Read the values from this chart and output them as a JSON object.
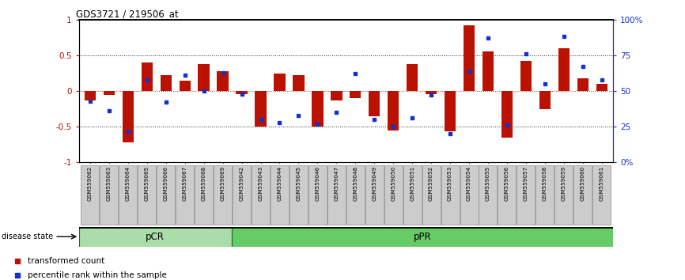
{
  "title": "GDS3721 / 219506_at",
  "samples": [
    "GSM559062",
    "GSM559063",
    "GSM559064",
    "GSM559065",
    "GSM559066",
    "GSM559067",
    "GSM559068",
    "GSM559069",
    "GSM559042",
    "GSM559043",
    "GSM559044",
    "GSM559045",
    "GSM559046",
    "GSM559047",
    "GSM559048",
    "GSM559049",
    "GSM559050",
    "GSM559051",
    "GSM559052",
    "GSM559053",
    "GSM559054",
    "GSM559055",
    "GSM559056",
    "GSM559057",
    "GSM559058",
    "GSM559059",
    "GSM559060",
    "GSM559061"
  ],
  "bar_values": [
    -0.13,
    -0.05,
    -0.72,
    0.4,
    0.22,
    0.15,
    0.38,
    0.28,
    -0.04,
    -0.5,
    0.24,
    0.22,
    -0.5,
    -0.13,
    -0.1,
    -0.35,
    -0.55,
    0.38,
    -0.04,
    -0.56,
    0.92,
    0.55,
    -0.65,
    0.42,
    -0.25,
    0.6,
    0.18,
    0.1
  ],
  "percentile_values": [
    0.43,
    0.36,
    0.22,
    0.58,
    0.42,
    0.61,
    0.5,
    0.63,
    0.48,
    0.3,
    0.28,
    0.33,
    0.27,
    0.35,
    0.62,
    0.3,
    0.25,
    0.31,
    0.47,
    0.2,
    0.64,
    0.87,
    0.26,
    0.76,
    0.55,
    0.88,
    0.67,
    0.58
  ],
  "pCR_count": 8,
  "bar_color": "#bb1100",
  "dot_color": "#1133cc",
  "pCR_color": "#aaddaa",
  "pPR_color": "#66cc66",
  "legend_labels": [
    "transformed count",
    "percentile rank within the sample"
  ],
  "disease_label": "disease state",
  "ylim": [
    -1.0,
    1.0
  ],
  "yticks_left": [
    -1.0,
    -0.5,
    0.0,
    0.5,
    1.0
  ],
  "ytick_labels_left": [
    "-1",
    "-0.5",
    "0",
    "0.5",
    "1"
  ],
  "ytick_labels_right": [
    "0%",
    "25",
    "50",
    "75",
    "100%"
  ],
  "dotted_line_color": "#222222",
  "zero_line_color": "#cc2200"
}
